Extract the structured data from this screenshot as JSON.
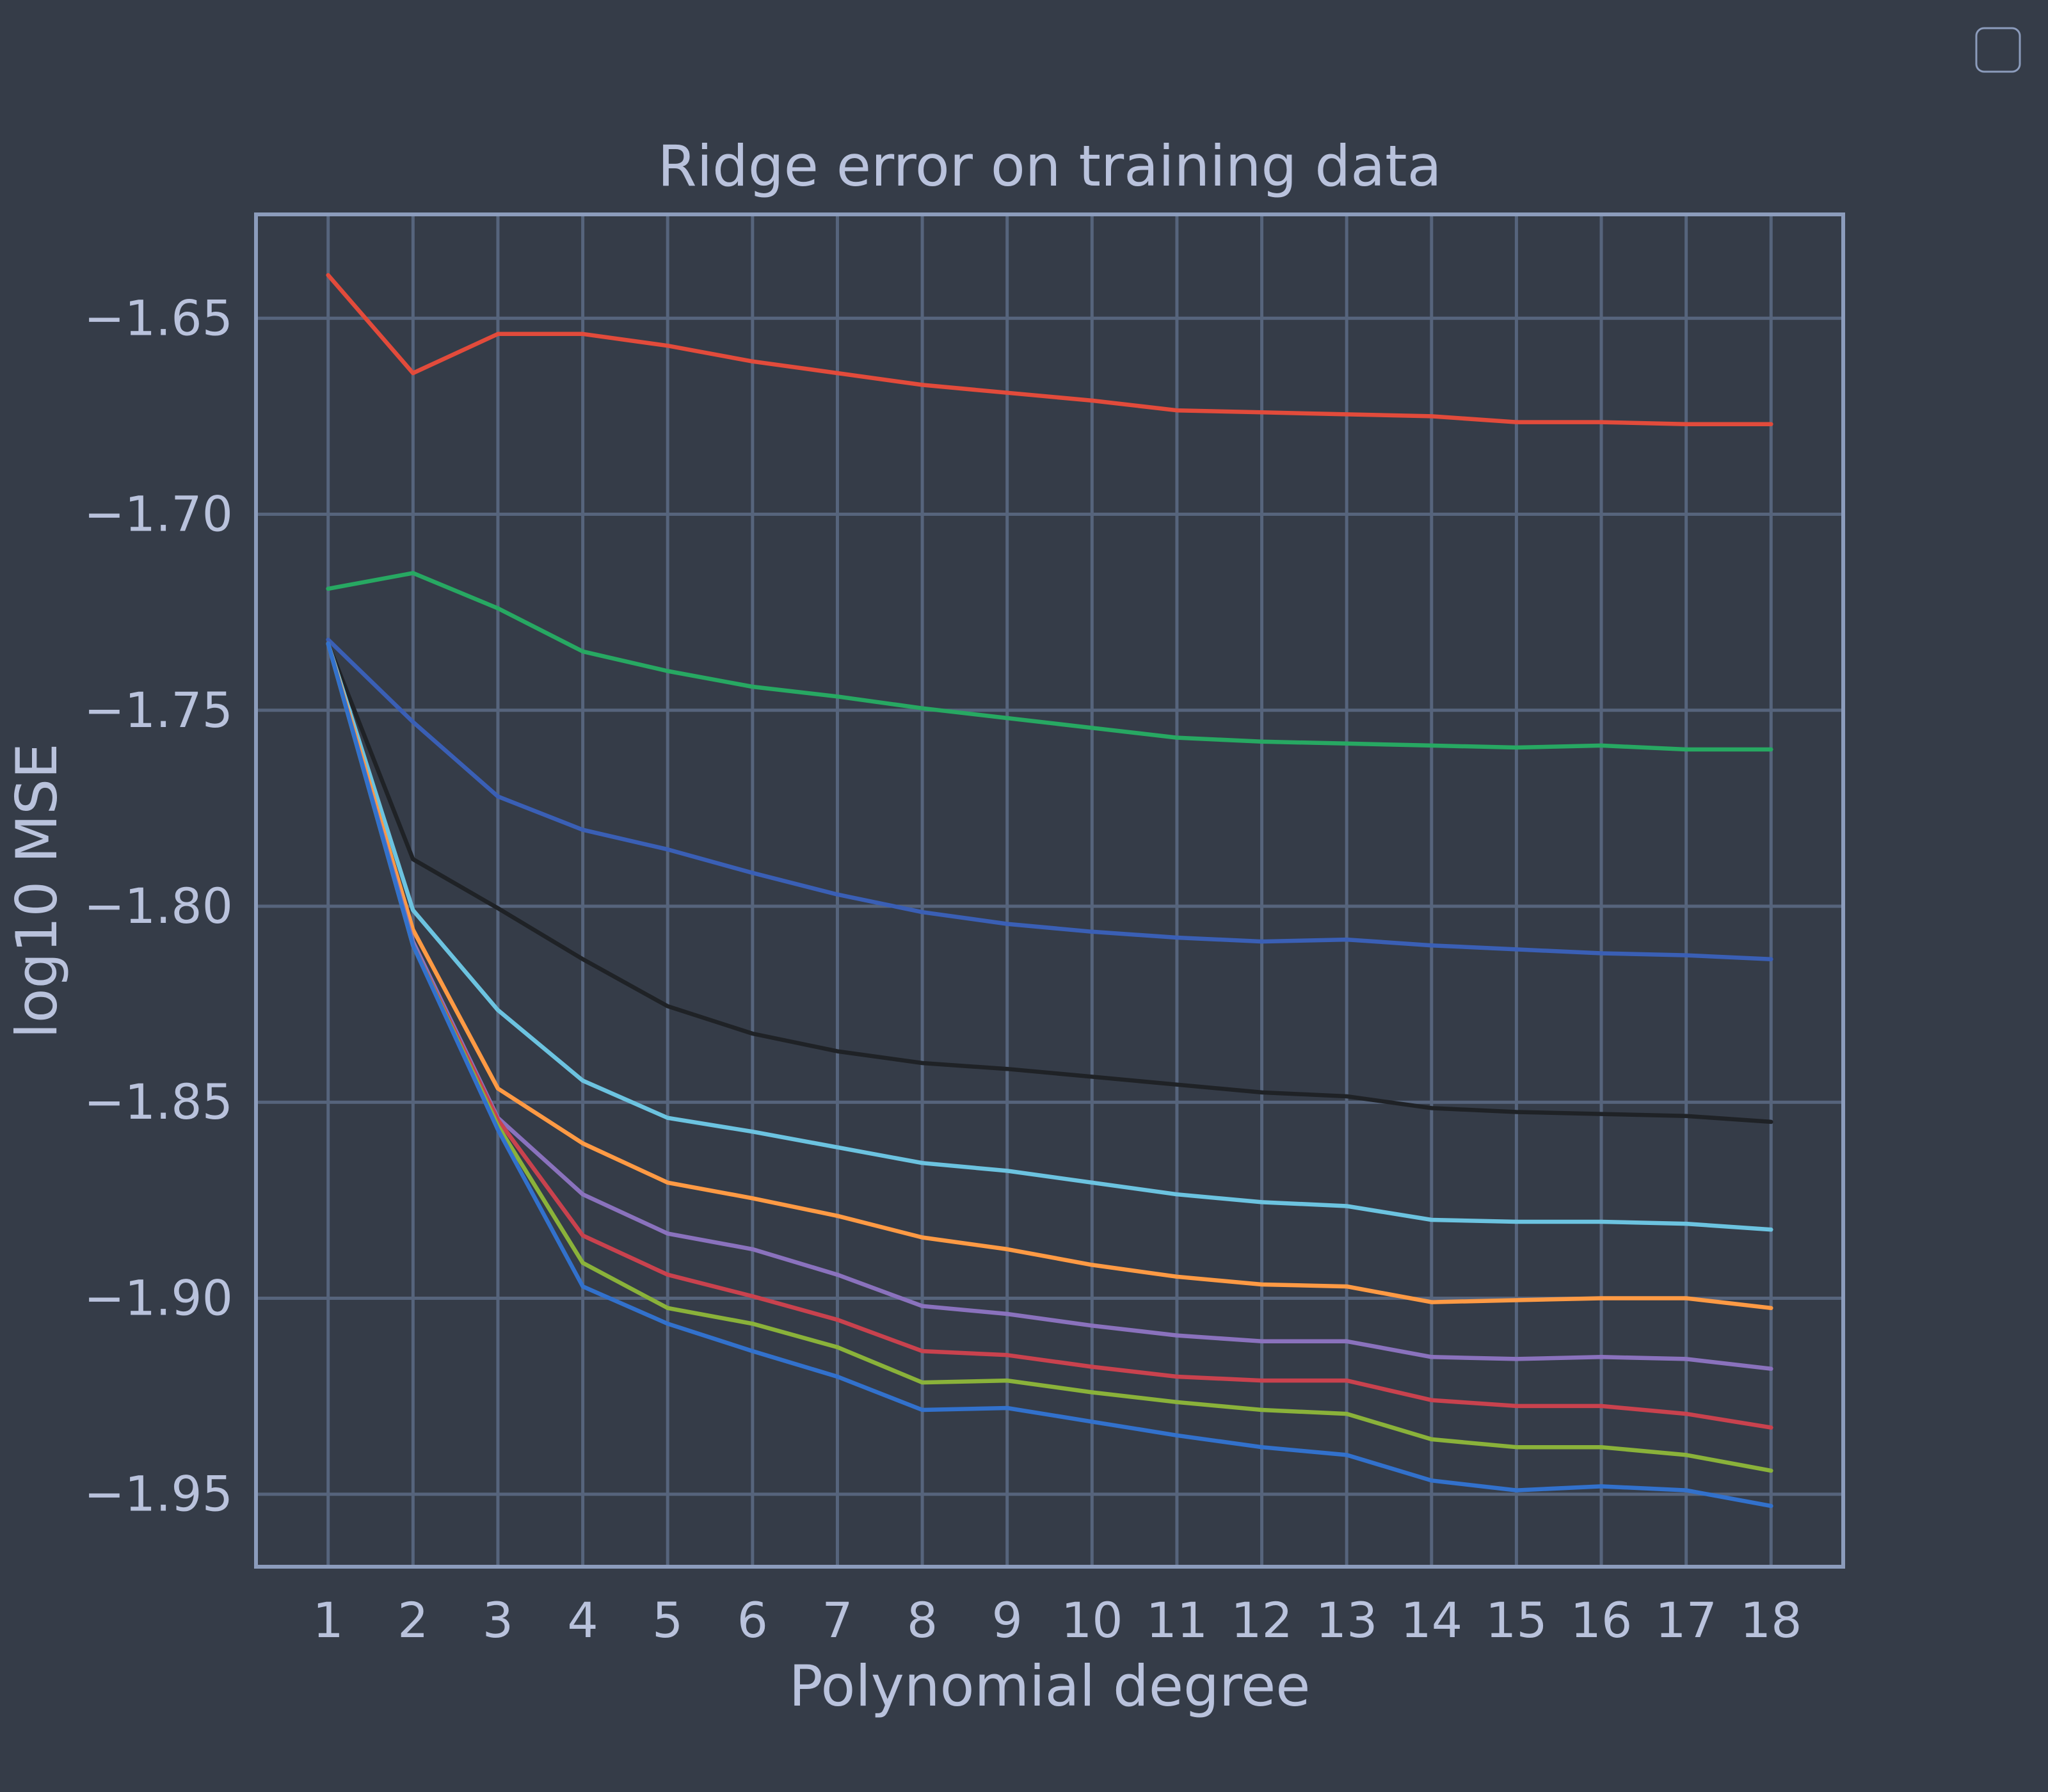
{
  "chart_data": {
    "type": "line",
    "title": "Ridge error on training data",
    "xlabel": "Polynomial degree",
    "ylabel": "log10 MSE",
    "x": [
      1,
      2,
      3,
      4,
      5,
      6,
      7,
      8,
      9,
      10,
      11,
      12,
      13,
      14,
      15,
      16,
      17,
      18
    ],
    "xticks": [
      "1",
      "2",
      "3",
      "4",
      "5",
      "6",
      "7",
      "8",
      "9",
      "10",
      "11",
      "12",
      "13",
      "14",
      "15",
      "16",
      "17",
      "18"
    ],
    "yticks": [
      -1.65,
      -1.7,
      -1.75,
      -1.8,
      -1.85,
      -1.9,
      -1.95
    ],
    "ytick_labels": [
      "−1.65",
      "−1.70",
      "−1.75",
      "−1.80",
      "−1.85",
      "−1.90",
      "−1.95"
    ],
    "xlim": [
      0.15,
      18.85
    ],
    "ylim": [
      -1.9685,
      -1.6235
    ],
    "grid": true,
    "legend": "top-right",
    "series": [
      {
        "color": "#e24b3b",
        "values": [
          -1.639,
          -1.664,
          -1.654,
          -1.654,
          -1.657,
          -1.661,
          -1.664,
          -1.667,
          -1.669,
          -1.671,
          -1.6735,
          -1.674,
          -1.6745,
          -1.675,
          -1.6765,
          -1.6765,
          -1.677,
          -1.677
        ]
      },
      {
        "color": "#27a862",
        "values": [
          -1.719,
          -1.715,
          -1.724,
          -1.735,
          -1.74,
          -1.744,
          -1.7465,
          -1.7495,
          -1.752,
          -1.7545,
          -1.757,
          -1.758,
          -1.7585,
          -1.759,
          -1.7595,
          -1.759,
          -1.76,
          -1.76
        ]
      },
      {
        "color": "#3a5fb5",
        "values": [
          -1.732,
          -1.753,
          -1.772,
          -1.7805,
          -1.7855,
          -1.7915,
          -1.797,
          -1.8015,
          -1.8045,
          -1.8065,
          -1.808,
          -1.809,
          -1.8085,
          -1.81,
          -1.811,
          -1.812,
          -1.8125,
          -1.8135
        ]
      },
      {
        "color": "#1f2226",
        "values": [
          -1.733,
          -1.788,
          -1.8005,
          -1.8135,
          -1.8255,
          -1.8325,
          -1.837,
          -1.84,
          -1.8415,
          -1.8435,
          -1.8455,
          -1.8475,
          -1.8485,
          -1.8515,
          -1.8525,
          -1.853,
          -1.8535,
          -1.855
        ]
      },
      {
        "color": "#6cc3e0",
        "values": [
          -1.733,
          -1.801,
          -1.8265,
          -1.8445,
          -1.854,
          -1.8575,
          -1.8615,
          -1.8655,
          -1.8675,
          -1.8705,
          -1.8735,
          -1.8755,
          -1.8765,
          -1.88,
          -1.8805,
          -1.8805,
          -1.881,
          -1.8825
        ]
      },
      {
        "color": "#ff9a44",
        "values": [
          -1.733,
          -1.806,
          -1.8465,
          -1.8605,
          -1.8705,
          -1.8745,
          -1.879,
          -1.8845,
          -1.8875,
          -1.8915,
          -1.8945,
          -1.8965,
          -1.897,
          -1.901,
          -1.9005,
          -1.9,
          -1.9,
          -1.9025
        ]
      },
      {
        "color": "#8a72bd",
        "values": [
          -1.733,
          -1.809,
          -1.854,
          -1.8735,
          -1.8835,
          -1.8875,
          -1.894,
          -1.902,
          -1.904,
          -1.907,
          -1.9095,
          -1.911,
          -1.911,
          -1.915,
          -1.9155,
          -1.915,
          -1.9155,
          -1.918
        ]
      },
      {
        "color": "#c9424e",
        "values": [
          -1.733,
          -1.81,
          -1.8545,
          -1.884,
          -1.894,
          -1.8995,
          -1.9055,
          -1.9135,
          -1.9145,
          -1.9175,
          -1.92,
          -1.921,
          -1.921,
          -1.926,
          -1.9275,
          -1.9275,
          -1.9295,
          -1.933
        ]
      },
      {
        "color": "#8ab23a",
        "values": [
          -1.733,
          -1.81,
          -1.856,
          -1.891,
          -1.9025,
          -1.9065,
          -1.9125,
          -1.9215,
          -1.921,
          -1.924,
          -1.9265,
          -1.9285,
          -1.9295,
          -1.936,
          -1.938,
          -1.938,
          -1.94,
          -1.944
        ]
      },
      {
        "color": "#3271cc",
        "values": [
          -1.733,
          -1.81,
          -1.857,
          -1.897,
          -1.9065,
          -1.9135,
          -1.92,
          -1.9285,
          -1.928,
          -1.9315,
          -1.935,
          -1.938,
          -1.94,
          -1.9465,
          -1.949,
          -1.948,
          -1.949,
          -1.953
        ]
      }
    ]
  }
}
